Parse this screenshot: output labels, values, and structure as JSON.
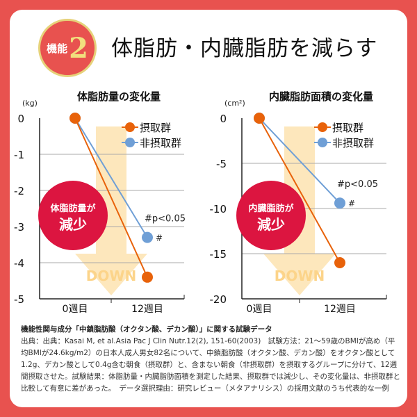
{
  "header": {
    "badge_label": "機能",
    "badge_number": "2",
    "title": "体脂肪・内臓脂肪を減らす"
  },
  "colors": {
    "background": "#e8524f",
    "intake": "#e8620a",
    "non_intake": "#6f9fd6",
    "badge_red": "#dc1540",
    "arrow": "#fde3b0"
  },
  "chart_data": [
    {
      "type": "line",
      "title": "体脂肪量の変化量",
      "ylabel": "(kg)",
      "categories": [
        "0週目",
        "12週目"
      ],
      "ylim": [
        -5,
        0
      ],
      "yticks": [
        "0",
        "-1",
        "-2",
        "-3",
        "-4",
        "-5"
      ],
      "grid": true,
      "legend_placement": "top-right",
      "series": [
        {
          "name": "摂取群",
          "values": [
            0,
            -4.4
          ]
        },
        {
          "name": "非摂取群",
          "values": [
            0,
            -3.3
          ]
        }
      ],
      "annotations": {
        "significance": "#p<0.05",
        "marker": "#",
        "badge_line1": "体脂肪量が",
        "badge_line2": "減少",
        "arrow_text": "DOWN"
      }
    },
    {
      "type": "line",
      "title": "内臓脂肪面積の変化量",
      "ylabel": "(cm²)",
      "categories": [
        "0週目",
        "12週目"
      ],
      "ylim": [
        -20,
        0
      ],
      "yticks": [
        "0",
        "-5",
        "-10",
        "-15",
        "-20"
      ],
      "grid": true,
      "legend_placement": "top-right",
      "series": [
        {
          "name": "摂取群",
          "values": [
            0,
            -16
          ]
        },
        {
          "name": "非摂取群",
          "values": [
            0,
            -9.4
          ]
        }
      ],
      "annotations": {
        "significance": "#p<0.05",
        "marker": "#",
        "badge_line1": "内臓脂肪が",
        "badge_line2": "減少",
        "arrow_text": "DOWN"
      }
    }
  ],
  "footnote": {
    "heading": "機能性関与成分「中鎖脂肪酸（オクタン酸、デカン酸）」に関する試験データ",
    "body": "出典：出典：Kasai M, et al.Asia Pac J Clin Nutr.12(2), 151-60(2003)　試験方法：21～59歳のBMIが高め（平均BMIが24.6kg/m2）の日本人成人男女82名について、中鎖脂肪酸（オクタン酸、デカン酸）をオクタン酸として1.2g、デカン酸として0.4g含む朝食（摂取群）と、含まない朝食（非摂取群）を摂取するグループに分けて、12週間摂取させた。試験結果：体脂肪量・内臓脂肪面積を測定した結果、摂取群では減少し、その変化量は、非摂取群と比較して有意に差があった。　データ選択理由：研究レビュー（メタアナリシス）の採用文献のうち代表的な一例"
  }
}
